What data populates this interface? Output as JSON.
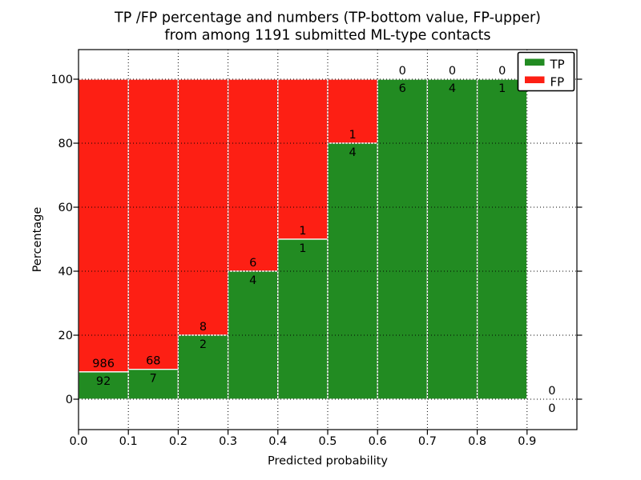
{
  "figure": {
    "title_line1": "TP /FP percentage and numbers (TP-bottom value, FP-upper)",
    "title_line2": "from among 1191 submitted ML-type contacts",
    "background": "#ffffff"
  },
  "chart_data": {
    "type": "bar",
    "stacked": true,
    "title": "TP /FP percentage and numbers (TP-bottom value, FP-upper)\nfrom among 1191 submitted ML-type contacts",
    "xlabel": "Predicted probability",
    "ylabel": "Percentage",
    "total_contacts": 1191,
    "xlim": [
      0.0,
      1.0
    ],
    "ylim": [
      -10,
      110
    ],
    "grid": true,
    "grid_style": "dotted",
    "bin_width": 0.1,
    "categories": [
      0.0,
      0.1,
      0.2,
      0.3,
      0.4,
      0.5,
      0.6,
      0.7,
      0.8,
      0.9
    ],
    "x_tick_labels": [
      "0.0",
      "0.1",
      "0.2",
      "0.3",
      "0.4",
      "0.5",
      "0.6",
      "0.7",
      "0.8",
      "0.9"
    ],
    "y_tick_values": [
      0,
      20,
      40,
      60,
      80,
      100
    ],
    "series": [
      {
        "name": "TP",
        "color": "#228b22",
        "counts": [
          92,
          7,
          2,
          4,
          1,
          4,
          6,
          4,
          1,
          0
        ],
        "pct": [
          8.53,
          9.33,
          20.0,
          40.0,
          50.0,
          80.0,
          100.0,
          100.0,
          100.0,
          0.0
        ]
      },
      {
        "name": "FP",
        "color": "#fd1f14",
        "counts": [
          986,
          68,
          8,
          6,
          1,
          1,
          0,
          0,
          0,
          0
        ],
        "pct": [
          91.47,
          90.67,
          80.0,
          60.0,
          50.0,
          20.0,
          0.0,
          0.0,
          0.0,
          0.0
        ]
      }
    ],
    "legend": {
      "position": "upper right",
      "labels": [
        "TP",
        "FP"
      ]
    },
    "bar_edge_color": "#ffffff",
    "axis_color": "#000000"
  }
}
